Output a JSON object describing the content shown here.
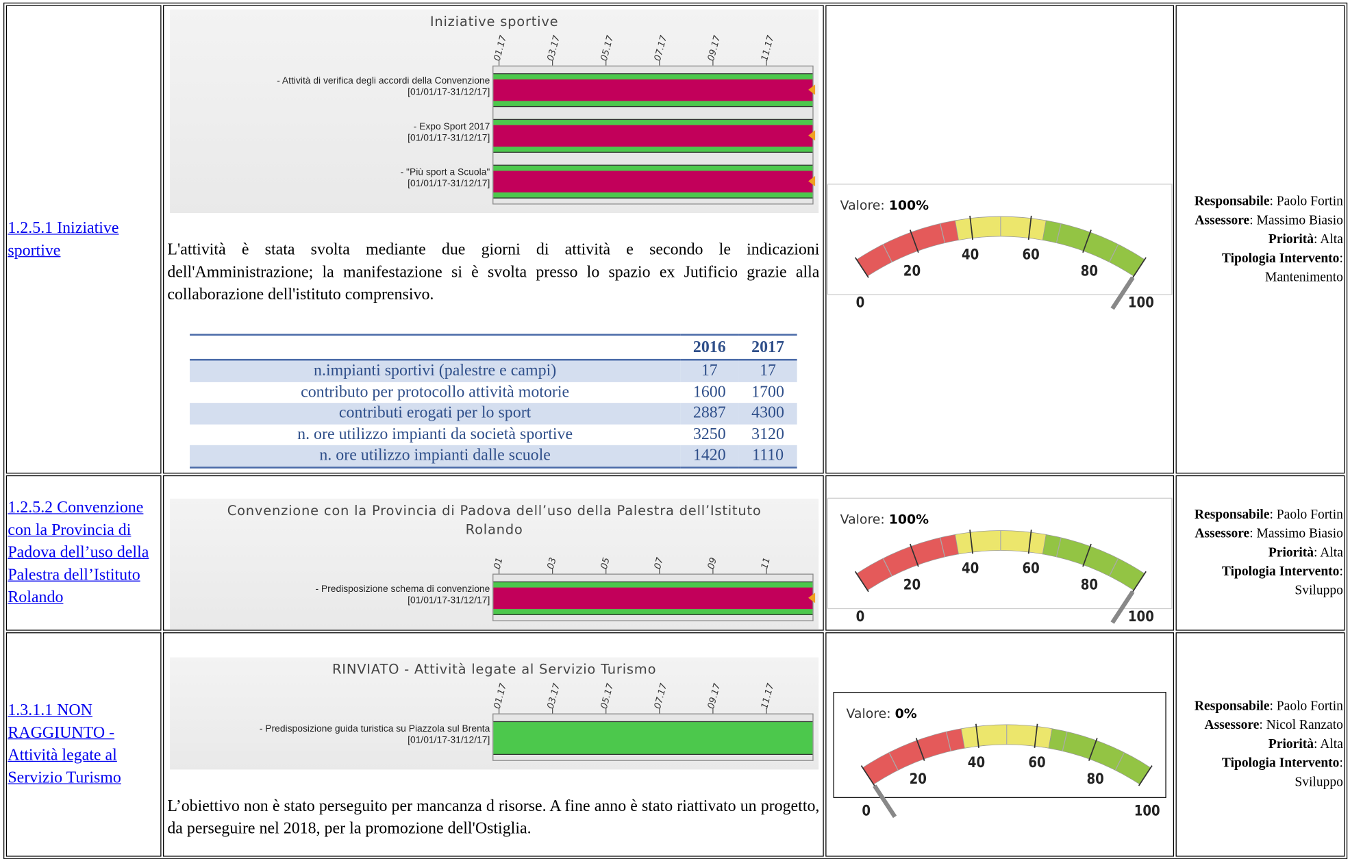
{
  "rows": [
    {
      "link": "1.2.5.1 Iniziative sportive",
      "gantt": {
        "title": "Iniziative sportive",
        "ticks": [
          "01.17",
          "03.17",
          "05.17",
          "07.17",
          "09.17",
          "11.17"
        ],
        "tasks": [
          {
            "name": "- Attività di verifica degli accordi della Convenzione",
            "dates": "[01/01/17-31/12/17]"
          },
          {
            "name": "- Expo Sport 2017",
            "dates": "[01/01/17-31/12/17]"
          },
          {
            "name": "- \"Più sport a Scuola\"",
            "dates": "[01/01/17-31/12/17]"
          }
        ]
      },
      "text": "L'attività è stata svolta mediante due giorni di attività e secondo le indicazioni dell'Amministrazione; la manifestazione si è svolta presso lo spazio ex Jutificio grazie alla collaborazione dell'istituto comprensivo.",
      "table": {
        "header": [
          "2016",
          "2017"
        ],
        "rows": [
          [
            "n.impianti sportivi (palestre e campi)",
            17,
            17
          ],
          [
            "contributo per protocollo attività motorie",
            1600,
            1700
          ],
          [
            "contributi erogati per lo sport",
            2887,
            4300
          ],
          [
            "n. ore utilizzo impianti da società sportive",
            3250,
            3120
          ],
          [
            "n. ore utilizzo impianti dalle scuole",
            1420,
            1110
          ]
        ]
      },
      "gauge": {
        "label": "Valore:",
        "value": 100,
        "value_label": "100%",
        "ticks": [
          0,
          20,
          40,
          60,
          80,
          100
        ]
      },
      "info": [
        {
          "key": "Responsabile",
          "value": ": Paolo Fortin"
        },
        {
          "key": "Assessore",
          "value": ": Massimo Biasio"
        },
        {
          "key": "Priorità",
          "value": ": Alta"
        },
        {
          "key": "Tipologia Intervento",
          "value": ": Mantenimento"
        }
      ]
    },
    {
      "link": "1.2.5.2 Convenzione con la Provincia di Padova dell’uso della Palestra dell’Istituto Rolando",
      "gantt": {
        "title": "Convenzione con la Provincia di Padova dell’uso della Palestra dell’Istituto Rolando",
        "ticks": [
          "01",
          "03",
          "05",
          "07",
          "09",
          "11"
        ],
        "tasks": [
          {
            "name": "- Predisposizione schema di convenzione",
            "dates": "[01/01/17-31/12/17]"
          }
        ]
      },
      "gauge": {
        "label": "Valore:",
        "value": 100,
        "value_label": "100%",
        "ticks": [
          0,
          20,
          40,
          60,
          80,
          100
        ]
      },
      "info": [
        {
          "key": "Responsabile",
          "value": ": Paolo Fortin"
        },
        {
          "key": "Assessore",
          "value": ": Massimo Biasio"
        },
        {
          "key": "Priorità",
          "value": ": Alta"
        },
        {
          "key": "Tipologia Intervento",
          "value": ": Sviluppo"
        }
      ]
    },
    {
      "link": "1.3.1.1 NON RAGGIUNTO - Attività legate al Servizio Turismo",
      "gantt": {
        "title": "RINVIATO - Attività legate al Servizio Turismo",
        "ticks": [
          "01.17",
          "03.17",
          "05.17",
          "07.17",
          "09.17",
          "11.17"
        ],
        "tasks": [
          {
            "name": "- Predisposizione guida turistica su Piazzola sul Brenta",
            "dates": "[01/01/17-31/12/17]"
          }
        ]
      },
      "text": "L’obiettivo non è stato perseguito per mancanza d risorse. A fine anno è stato riattivato un progetto, da perseguire nel 2018, per la promozione dell'Ostiglia.",
      "gauge": {
        "label": "Valore:",
        "value": 0,
        "value_label": "0%",
        "ticks": [
          0,
          20,
          40,
          60,
          80,
          100
        ]
      },
      "info": [
        {
          "key": "Responsabile",
          "value": ": Paolo Fortin"
        },
        {
          "key": "Assessore",
          "value": ": Nicol Ranzato"
        },
        {
          "key": "Priorità",
          "value": ": Alta"
        },
        {
          "key": "Tipologia Intervento",
          "value": ": Sviluppo"
        }
      ]
    }
  ]
}
